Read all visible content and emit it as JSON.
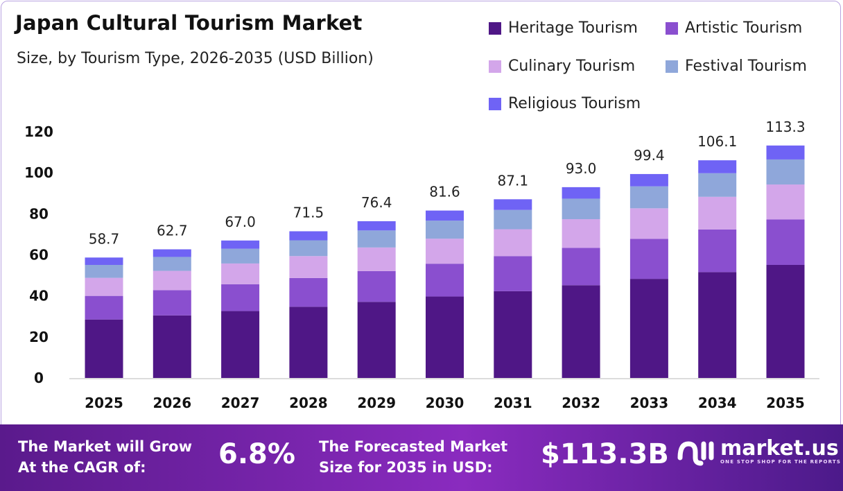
{
  "title": "Japan Cultural Tourism Market",
  "subtitle": "Size, by Tourism Type, 2026-2035 (USD Billion)",
  "chart_data": {
    "type": "bar",
    "stacked": true,
    "categories": [
      "2025",
      "2026",
      "2027",
      "2028",
      "2029",
      "2030",
      "2031",
      "2032",
      "2033",
      "2034",
      "2035"
    ],
    "series": [
      {
        "name": "Heritage Tourism",
        "color": "#4f1786",
        "values": [
          28.5,
          30.5,
          32.6,
          34.7,
          37.1,
          39.7,
          42.3,
          45.2,
          48.3,
          51.6,
          55.1
        ]
      },
      {
        "name": "Artistic Tourism",
        "color": "#8a4fcf",
        "values": [
          11.5,
          12.3,
          13.1,
          14.0,
          15.0,
          16.0,
          17.1,
          18.2,
          19.5,
          20.8,
          22.2
        ]
      },
      {
        "name": "Culinary Tourism",
        "color": "#d3a6ea",
        "values": [
          8.8,
          9.4,
          10.1,
          10.7,
          11.5,
          12.2,
          13.1,
          14.0,
          14.9,
          15.9,
          17.0
        ]
      },
      {
        "name": "Festival Tourism",
        "color": "#8fa7da",
        "values": [
          6.3,
          6.8,
          7.2,
          7.7,
          8.3,
          8.8,
          9.4,
          10.0,
          10.7,
          11.5,
          12.2
        ]
      },
      {
        "name": "Religious Tourism",
        "color": "#6f63f5",
        "values": [
          3.6,
          3.7,
          4.0,
          4.4,
          4.5,
          4.9,
          5.2,
          5.6,
          6.0,
          6.3,
          6.8
        ]
      }
    ],
    "totals": [
      "58.7",
      "62.7",
      "67.0",
      "71.5",
      "76.4",
      "81.6",
      "87.1",
      "93.0",
      "99.4",
      "106.1",
      "113.3"
    ],
    "yticks": [
      "0",
      "20",
      "40",
      "60",
      "80",
      "100",
      "120"
    ],
    "ylim": [
      0,
      120
    ],
    "grid": false,
    "legend_position": "top-right"
  },
  "banner": {
    "cagr_label_1": "The Market will Grow",
    "cagr_label_2": "At the CAGR of:",
    "cagr_value": "6.8%",
    "forecast_label_1": "The Forecasted Market",
    "forecast_label_2": "Size for 2035 in USD:",
    "forecast_value": "$113.3B",
    "logo_name": "market.us",
    "logo_tagline": "ONE STOP SHOP FOR THE REPORTS"
  }
}
